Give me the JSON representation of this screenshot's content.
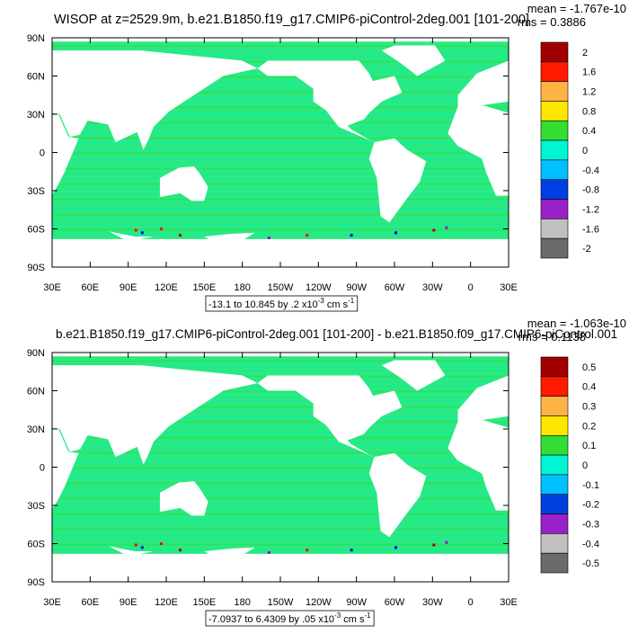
{
  "panels": [
    {
      "title": "WISOP at z=2529.9m, b.e21.B1850.f19_g17.CMIP6-piControl-2deg.001 [101-200]",
      "mean": "mean = -1.767e-10",
      "rms": "rms = 0.3886",
      "lat_labels": [
        "90N",
        "60N",
        "30N",
        "0",
        "30S",
        "60S",
        "90S"
      ],
      "lon_labels": [
        "30E",
        "60E",
        "90E",
        "120E",
        "150E",
        "180",
        "150W",
        "120W",
        "90W",
        "60W",
        "30W",
        "0",
        "30E"
      ],
      "colorbar_labels": [
        "2",
        "1.6",
        "1.2",
        "0.8",
        "0.4",
        "0",
        "-0.4",
        "-0.8",
        "-1.2",
        "-1.6",
        "-2"
      ],
      "range_text": "-13.1 to 10.845 by .2 x10",
      "range_exponent": "-3",
      "range_unit": " cm s",
      "unit_exponent": "-1"
    },
    {
      "title": "b.e21.B1850.f19_g17.CMIP6-piControl-2deg.001 [101-200] - b.e21.B1850.f09_g17.CMIP6-piControl.001",
      "mean": "mean = -1.063e-10",
      "rms": "rms = 0.1138",
      "lat_labels": [
        "90N",
        "60N",
        "30N",
        "0",
        "30S",
        "60S",
        "90S"
      ],
      "lon_labels": [
        "30E",
        "60E",
        "90E",
        "120E",
        "150E",
        "180",
        "150W",
        "120W",
        "90W",
        "60W",
        "30W",
        "0",
        "30E"
      ],
      "colorbar_labels": [
        "0.5",
        "0.4",
        "0.3",
        "0.2",
        "0.1",
        "0",
        "-0.1",
        "-0.2",
        "-0.3",
        "-0.4",
        "-0.5"
      ],
      "range_text": "-7.0937 to 6.4309 by .05 x10",
      "range_exponent": "-3",
      "range_unit": " cm s",
      "unit_exponent": "-1"
    }
  ]
}
